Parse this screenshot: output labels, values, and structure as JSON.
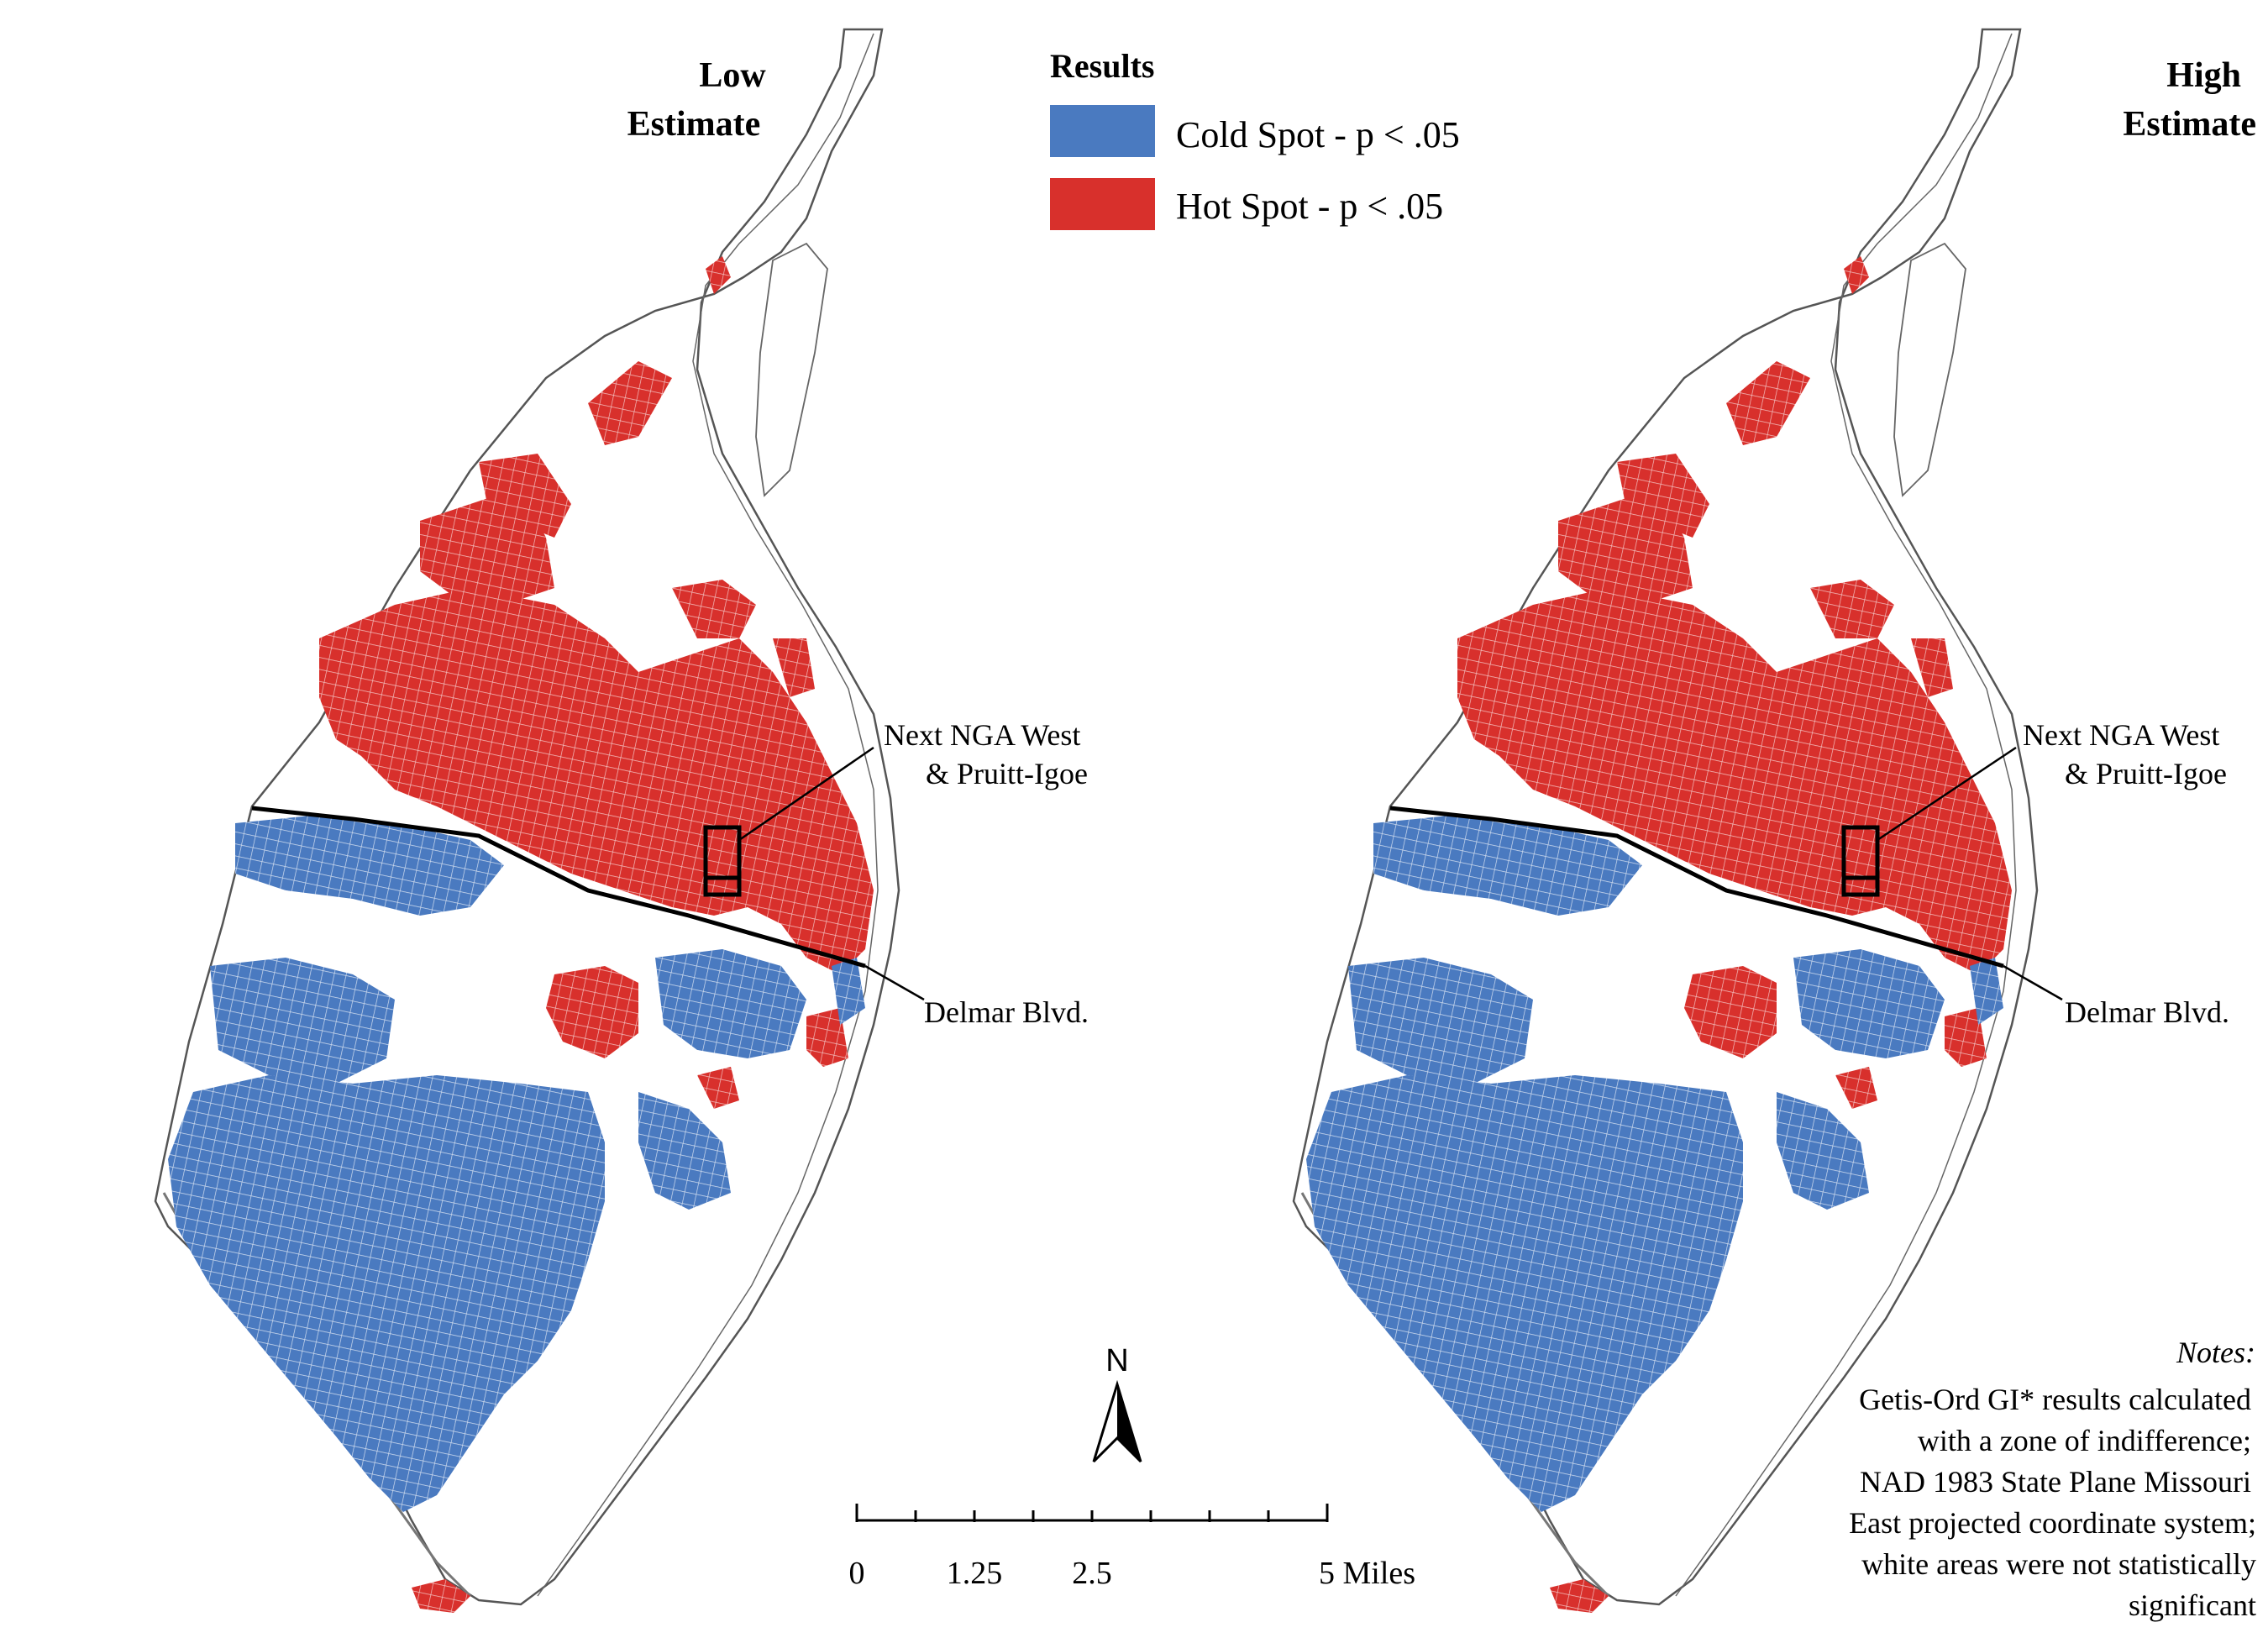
{
  "panels": {
    "left": {
      "title_line1": "Low",
      "title_line2": "Estimate"
    },
    "right": {
      "title_line1": "High",
      "title_line2": "Estimate"
    }
  },
  "legend": {
    "title": "Results",
    "items": [
      {
        "label": "Cold Spot - p < .05",
        "color": "#4a7ac0"
      },
      {
        "label": "Hot Spot - p < .05",
        "color": "#d8302c"
      }
    ]
  },
  "annotations": {
    "site_line1": "Next NGA West",
    "site_line2": "& Pruitt-Igoe",
    "street": "Delmar Blvd."
  },
  "north_arrow": {
    "label": "N"
  },
  "scale_bar": {
    "ticks": [
      "0",
      "1.25",
      "2.5",
      "5 Miles"
    ]
  },
  "notes": {
    "heading": "Notes:",
    "lines": [
      "Getis-Ord GI* results calculated",
      "with a zone of indifference;",
      "NAD 1983 State Plane Missouri",
      "East projected coordinate system;",
      "white areas were not statistically",
      "significant"
    ]
  },
  "colors": {
    "cold": "#4a7ac0",
    "hot": "#d8302c",
    "outline": "#555555"
  }
}
